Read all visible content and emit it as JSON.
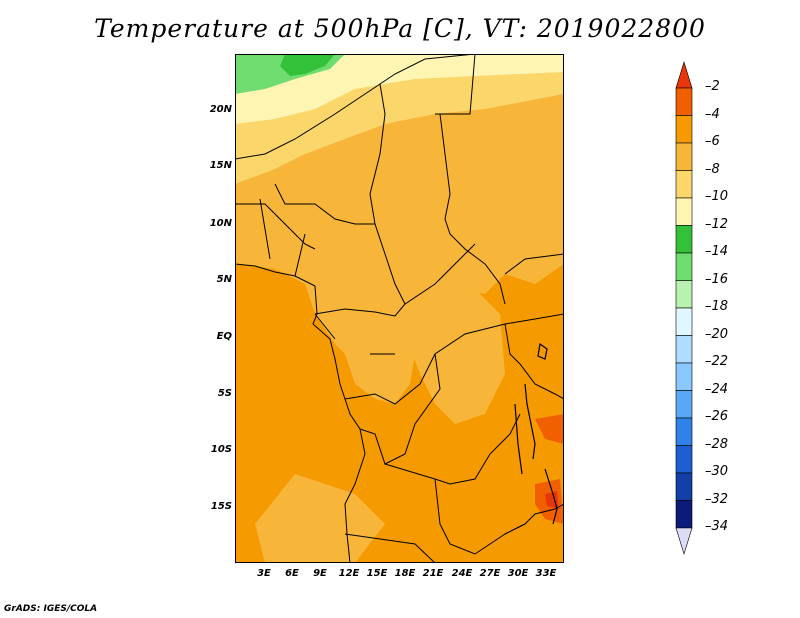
{
  "title": "Temperature at 500hPa [C], VT: 2019022800",
  "credit": "GrADS: IGES/COLA",
  "map": {
    "lat_labels": [
      "20N",
      "15N",
      "10N",
      "5N",
      "EQ",
      "5S",
      "10S",
      "15S"
    ],
    "lon_labels": [
      "3E",
      "6E",
      "9E",
      "12E",
      "15E",
      "18E",
      "21E",
      "24E",
      "27E",
      "30E",
      "33E"
    ]
  },
  "colorbar": {
    "labels": [
      "-2",
      "-4",
      "-6",
      "-8",
      "-10",
      "-12",
      "-14",
      "-16",
      "-18",
      "-20",
      "-22",
      "-24",
      "-26",
      "-28",
      "-30",
      "-32",
      "-34"
    ],
    "colors": [
      "#e8360a",
      "#f06000",
      "#f59a00",
      "#f7b53a",
      "#fad66b",
      "#fff5b3",
      "#33c13a",
      "#6fdc6f",
      "#b9f2b0",
      "#e0f7ff",
      "#b0dcff",
      "#8ac8ff",
      "#5aa8f5",
      "#2f82e8",
      "#1d5fd0",
      "#1340a8",
      "#0b1b7a",
      "#dcdcf5"
    ]
  }
}
